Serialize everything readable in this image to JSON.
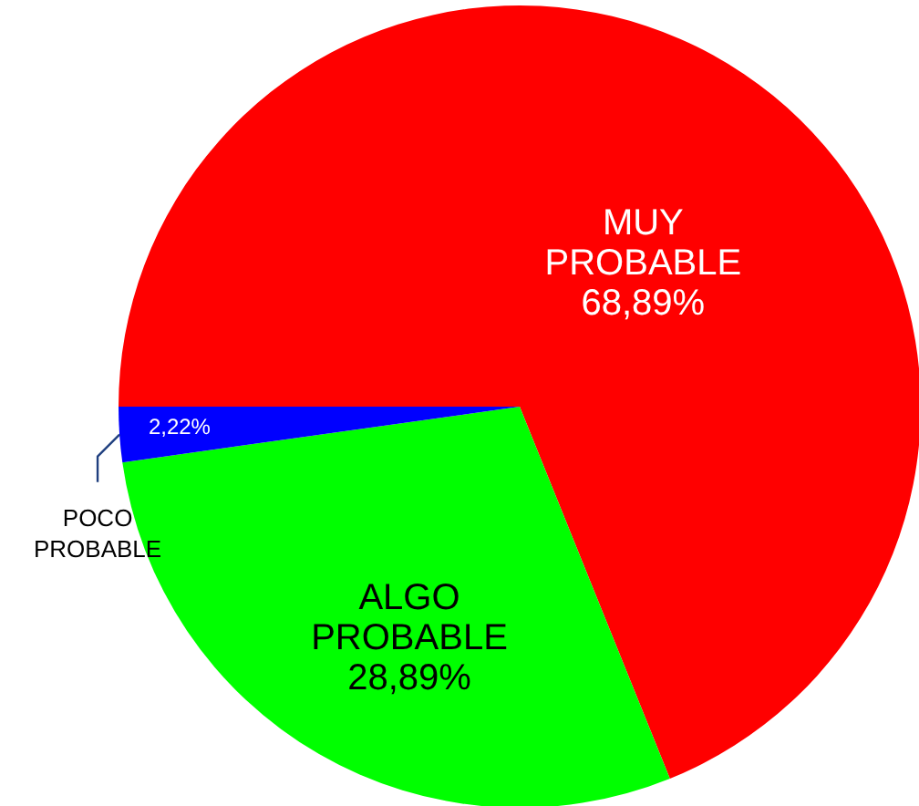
{
  "chart_data": {
    "type": "pie",
    "categories": [
      "MUY PROBABLE",
      "ALGO PROBABLE",
      "POCO PROBABLE"
    ],
    "values": [
      68.89,
      28.89,
      2.22
    ],
    "colors": [
      "#ff0000",
      "#00ff00",
      "#0000ff"
    ],
    "value_labels": [
      "68,89%",
      "28,89%",
      "2,22%"
    ]
  }
}
